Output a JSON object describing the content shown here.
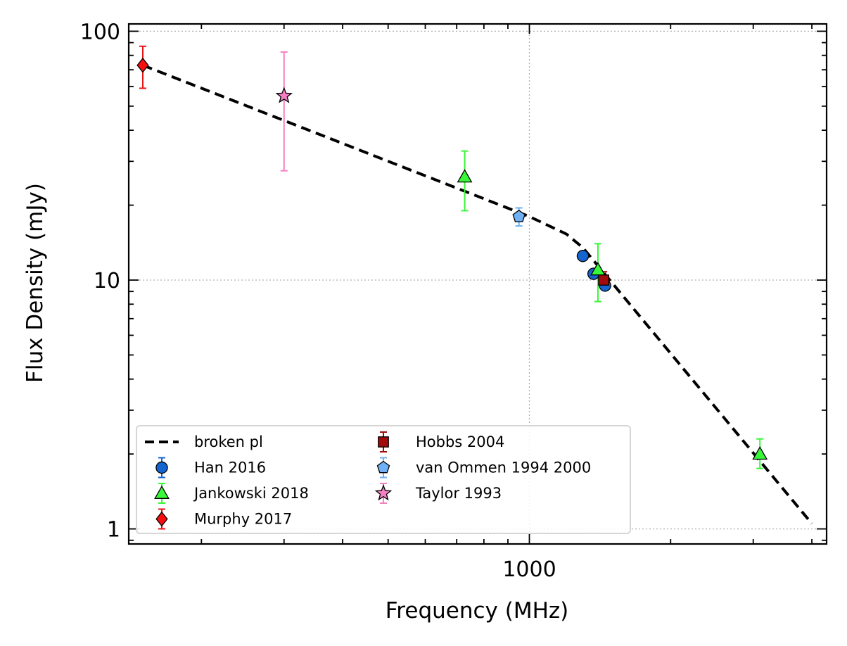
{
  "chart_data": {
    "type": "scatter",
    "title": "",
    "xlabel": "Frequency (MHz)",
    "ylabel": "Flux Density (mJy)",
    "xscale": "log",
    "yscale": "log",
    "xlim": [
      140,
      4300
    ],
    "ylim": [
      0.87,
      107
    ],
    "grid": true,
    "legend_position": "lower-left",
    "legend_columns": 2,
    "x_ticks": [
      {
        "value": 1000,
        "label": "1000"
      }
    ],
    "y_ticks": [
      {
        "value": 1,
        "label": "1"
      },
      {
        "value": 10,
        "label": "10"
      },
      {
        "value": 100,
        "label": "100"
      }
    ],
    "model": {
      "name": "broken pl",
      "color": "#000000",
      "dash": true,
      "x": [
        150,
        1000,
        1200,
        1300,
        4000
      ],
      "y": [
        73,
        18,
        15.3,
        13.5,
        1.05
      ]
    },
    "series": [
      {
        "name": "Han 2016",
        "marker": "circle",
        "color": "#1565d1",
        "err_color": "#1565d1",
        "x": [
          1300,
          1370,
          1450
        ],
        "y": [
          12.5,
          10.6,
          9.5
        ],
        "err_low": [
          0.3,
          0.3,
          0.3
        ],
        "err_high": [
          0.3,
          0.3,
          0.3
        ]
      },
      {
        "name": "Jankowski 2018",
        "marker": "triangle",
        "color": "#39f739",
        "err_color": "#39f739",
        "x": [
          728,
          1400,
          3100
        ],
        "y": [
          26,
          11,
          2.0
        ],
        "err_low": [
          7,
          2.8,
          0.25
        ],
        "err_high": [
          7,
          3,
          0.3
        ]
      },
      {
        "name": "Murphy 2017",
        "marker": "diamond",
        "color": "#f70f0f",
        "err_color": "#ea1313",
        "x": [
          150
        ],
        "y": [
          73
        ],
        "err_low": [
          14
        ],
        "err_high": [
          14
        ]
      },
      {
        "name": "Hobbs 2004",
        "marker": "square",
        "color": "#a10b0b",
        "err_color": "#a10b0b",
        "x": [
          1440
        ],
        "y": [
          10
        ],
        "err_low": [
          0.6
        ],
        "err_high": [
          0.8
        ]
      },
      {
        "name": "van Ommen 1994 2000",
        "marker": "pentagon",
        "color": "#6fb1f4",
        "err_color": "#6fb1f4",
        "x": [
          950
        ],
        "y": [
          18
        ],
        "err_low": [
          1.5
        ],
        "err_high": [
          1.5
        ]
      },
      {
        "name": "Taylor 1993",
        "marker": "star",
        "color": "#f57fc3",
        "err_color": "#f57fc3",
        "x": [
          300
        ],
        "y": [
          55
        ],
        "err_low": [
          27.5
        ],
        "err_high": [
          27.5
        ]
      }
    ]
  }
}
